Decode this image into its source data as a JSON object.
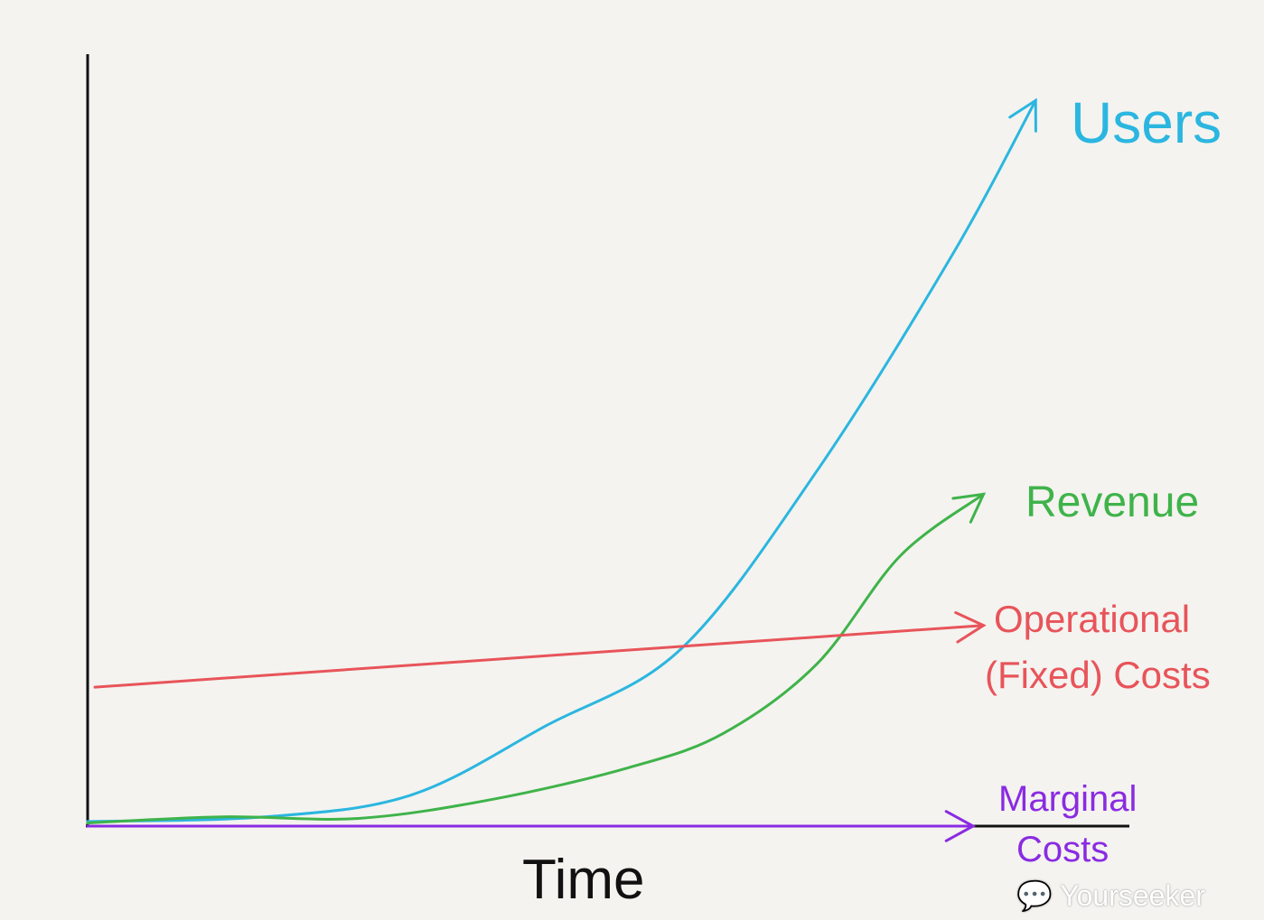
{
  "chart_data": {
    "type": "line",
    "title": "",
    "xlabel": "Time",
    "ylabel": "",
    "xlim": [
      0,
      100
    ],
    "ylim": [
      0,
      100
    ],
    "grid": false,
    "legend": "labels at line ends",
    "series": [
      {
        "name": "Users",
        "color": "#2bb6e0",
        "x": [
          0,
          17,
          31,
          44,
          57,
          70,
          83,
          91
        ],
        "y": [
          0.6,
          1.2,
          4,
          13,
          23,
          46,
          74,
          94
        ]
      },
      {
        "name": "Revenue",
        "color": "#3fb34a",
        "x": [
          0,
          13,
          26,
          39,
          52,
          61,
          70,
          78,
          86
        ],
        "y": [
          0.4,
          1.2,
          1,
          3.5,
          7.6,
          12,
          21,
          35,
          43
        ]
      },
      {
        "name": "Operational (Fixed) Costs",
        "color": "#e8545a",
        "x": [
          0.7,
          86
        ],
        "y": [
          18,
          26
        ]
      },
      {
        "name": "Marginal Costs",
        "color": "#8a2be2",
        "x": [
          0,
          85
        ],
        "y": [
          0,
          0
        ]
      }
    ],
    "labels": {
      "users": "Users",
      "revenue": "Revenue",
      "operational_1": "Operational",
      "operational_2": "(Fixed) Costs",
      "marginal_1": "Marginal",
      "marginal_2": "Costs"
    }
  },
  "watermark": "Yourseeker"
}
